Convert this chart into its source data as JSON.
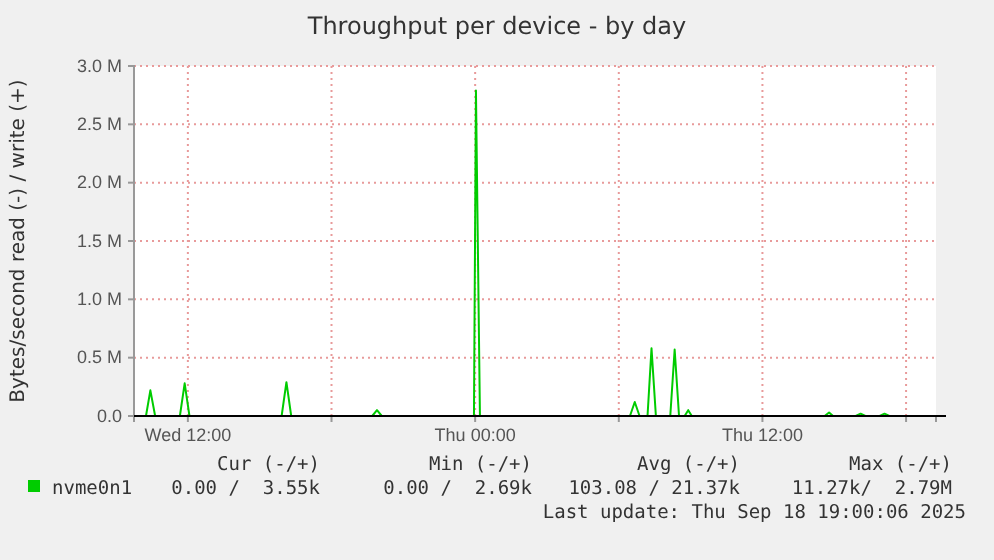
{
  "chart_data": {
    "type": "line",
    "title": "Throughput per device - by day",
    "ylabel": "Bytes/second read (-) / write (+)",
    "xlim": [
      "2025-09-17T09:45",
      "2025-09-18T19:15"
    ],
    "xticks": [
      {
        "value": "2025-09-17T12:00",
        "label": "Wed 12:00"
      },
      {
        "value": "2025-09-17T18:00",
        "label": null
      },
      {
        "value": "2025-09-18T00:00",
        "label": "Thu 00:00"
      },
      {
        "value": "2025-09-18T06:00",
        "label": null
      },
      {
        "value": "2025-09-18T12:00",
        "label": "Thu 12:00"
      },
      {
        "value": "2025-09-18T18:00",
        "label": null
      }
    ],
    "ylim": [
      0,
      3000000
    ],
    "yticks": [
      {
        "value": 0,
        "label": "0.0"
      },
      {
        "value": 500000,
        "label": "0.5 M"
      },
      {
        "value": 1000000,
        "label": "1.0 M"
      },
      {
        "value": 1500000,
        "label": "1.5 M"
      },
      {
        "value": 2000000,
        "label": "2.0 M"
      },
      {
        "value": 2500000,
        "label": "2.5 M"
      },
      {
        "value": 3000000,
        "label": "3.0 M"
      }
    ],
    "grid": true,
    "legend": "bottom",
    "marker": "none",
    "line_style": "solid",
    "series": [
      {
        "name": "nvme0n1",
        "color": "#00cc00",
        "x": [
          "2025-09-17T09:45",
          "2025-09-17T10:15",
          "2025-09-17T10:26",
          "2025-09-17T10:38",
          "2025-09-17T11:40",
          "2025-09-17T11:52",
          "2025-09-17T12:04",
          "2025-09-17T15:55",
          "2025-09-17T16:07",
          "2025-09-17T16:19",
          "2025-09-17T19:42",
          "2025-09-17T19:54",
          "2025-09-17T20:06",
          "2025-09-17T23:57",
          "2025-09-18T00:02",
          "2025-09-18T00:12",
          "2025-09-18T06:28",
          "2025-09-18T06:40",
          "2025-09-18T06:52",
          "2025-09-18T07:12",
          "2025-09-18T07:22",
          "2025-09-18T07:33",
          "2025-09-18T08:09",
          "2025-09-18T08:20",
          "2025-09-18T08:31",
          "2025-09-18T08:45",
          "2025-09-18T08:54",
          "2025-09-18T09:03",
          "2025-09-18T14:36",
          "2025-09-18T14:47",
          "2025-09-18T14:57",
          "2025-09-18T15:54",
          "2025-09-18T16:06",
          "2025-09-18T16:18",
          "2025-09-18T16:54",
          "2025-09-18T17:06",
          "2025-09-18T17:18",
          "2025-09-18T19:15"
        ],
        "values": [
          0,
          0,
          220000,
          0,
          0,
          280000,
          0,
          0,
          290000,
          0,
          0,
          50000,
          0,
          0,
          2790000,
          0,
          0,
          120000,
          0,
          0,
          580000,
          0,
          0,
          570000,
          0,
          0,
          50000,
          0,
          0,
          30000,
          0,
          0,
          20000,
          0,
          0,
          20000,
          0,
          0
        ]
      }
    ],
    "annotations": [
      "Cur (-/+)",
      "Min (-/+)",
      "Avg (-/+)",
      "Max (-/+)",
      "0.00 /  3.55k",
      "0.00 /  2.69k",
      "103.08 / 21.37k",
      "11.27k/  2.79M",
      "Last update: Thu Sep 18 19:00:06 2025"
    ]
  }
}
